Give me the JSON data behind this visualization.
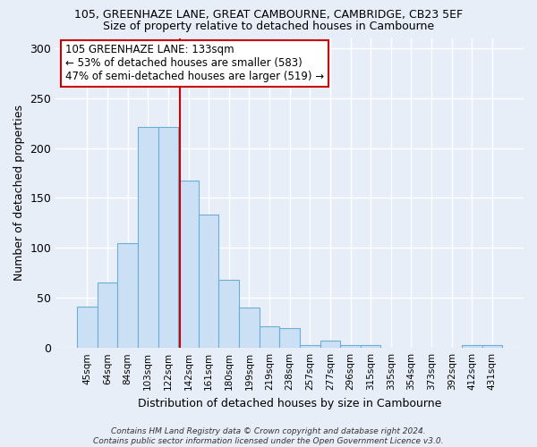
{
  "title1": "105, GREENHAZE LANE, GREAT CAMBOURNE, CAMBRIDGE, CB23 5EF",
  "title2": "Size of property relative to detached houses in Cambourne",
  "xlabel": "Distribution of detached houses by size in Cambourne",
  "ylabel": "Number of detached properties",
  "categories": [
    "45sqm",
    "64sqm",
    "84sqm",
    "103sqm",
    "122sqm",
    "142sqm",
    "161sqm",
    "180sqm",
    "199sqm",
    "219sqm",
    "238sqm",
    "257sqm",
    "277sqm",
    "296sqm",
    "315sqm",
    "335sqm",
    "354sqm",
    "373sqm",
    "392sqm",
    "412sqm",
    "431sqm"
  ],
  "values": [
    41,
    65,
    105,
    221,
    221,
    167,
    133,
    68,
    40,
    22,
    20,
    3,
    7,
    3,
    3,
    0,
    0,
    0,
    0,
    3,
    3
  ],
  "bar_color": "#cce0f5",
  "bar_edgecolor": "#6aaed6",
  "vline_x_index": 4.58,
  "vline_color": "#cc0000",
  "annotation_lines": [
    "105 GREENHAZE LANE: 133sqm",
    "← 53% of detached houses are smaller (583)",
    "47% of semi-detached houses are larger (519) →"
  ],
  "annotation_box_edgecolor": "#cc0000",
  "annotation_box_facecolor": "#ffffff",
  "background_color": "#e8eef8",
  "grid_color": "#ffffff",
  "ylim": [
    0,
    310
  ],
  "yticks": [
    0,
    50,
    100,
    150,
    200,
    250,
    300
  ],
  "footer": "Contains HM Land Registry data © Crown copyright and database right 2024.\nContains public sector information licensed under the Open Government Licence v3.0."
}
